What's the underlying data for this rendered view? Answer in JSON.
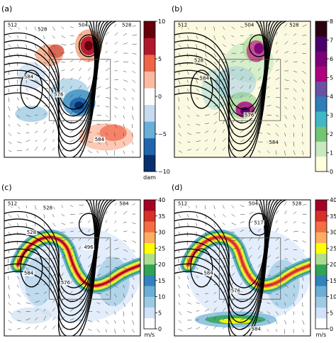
{
  "chart_data": [
    {
      "type": "heatmap",
      "panel_label": "(a)",
      "colorbar": {
        "unit": "dam",
        "ticks": [
          10,
          5,
          0,
          -5,
          -10
        ],
        "range": [
          -10,
          10
        ],
        "colors": [
          "#08306b",
          "#2166ac",
          "#6baed6",
          "#c6dbef",
          "#ffffff",
          "#fcbba1",
          "#ef6548",
          "#b2182b",
          "#67000d"
        ]
      },
      "contour_labels": [
        "512",
        "528",
        "504",
        "528",
        "584",
        "576",
        "584"
      ]
    },
    {
      "type": "heatmap",
      "panel_label": "(b)",
      "colorbar": {
        "unit": "",
        "ticks": [
          8,
          7,
          6,
          5,
          4,
          3,
          2,
          1,
          0
        ],
        "range": [
          0,
          8
        ],
        "colors": [
          "#ffffe0",
          "#c7e9c0",
          "#74c476",
          "#41b6c4",
          "#2c7fb8",
          "#6a51a3",
          "#ae017e",
          "#7a0177",
          "#49006a",
          "#2b0010"
        ]
      },
      "contour_labels": [
        "512",
        "504",
        "528",
        "528",
        "584",
        "576",
        "584"
      ]
    },
    {
      "type": "heatmap",
      "panel_label": "(c)",
      "colorbar": {
        "unit": "m/s",
        "ticks": [
          40,
          35,
          30,
          25,
          20,
          15,
          10,
          5,
          0
        ],
        "range": [
          0,
          40
        ],
        "colors": [
          "#ffffff",
          "#d0e1f9",
          "#9ecae1",
          "#6baed6",
          "#3182bd",
          "#31a354",
          "#addd8e",
          "#ffff00",
          "#fdae61",
          "#f46d43",
          "#d73027",
          "#a50026"
        ]
      },
      "contour_labels": [
        "512",
        "528",
        "528",
        "496",
        "584",
        "584",
        "576"
      ]
    },
    {
      "type": "heatmap",
      "panel_label": "(d)",
      "colorbar": {
        "unit": "m/s",
        "ticks": [
          40,
          35,
          30,
          25,
          20,
          15,
          10,
          5,
          0
        ],
        "range": [
          0,
          40
        ],
        "colors": [
          "#ffffff",
          "#d0e1f9",
          "#9ecae1",
          "#6baed6",
          "#3182bd",
          "#31a354",
          "#addd8e",
          "#ffff00",
          "#fdae61",
          "#f46d43",
          "#d73027",
          "#a50026"
        ]
      },
      "contour_labels": [
        "512",
        "504",
        "528",
        "517",
        "584",
        "576",
        "584"
      ]
    }
  ]
}
